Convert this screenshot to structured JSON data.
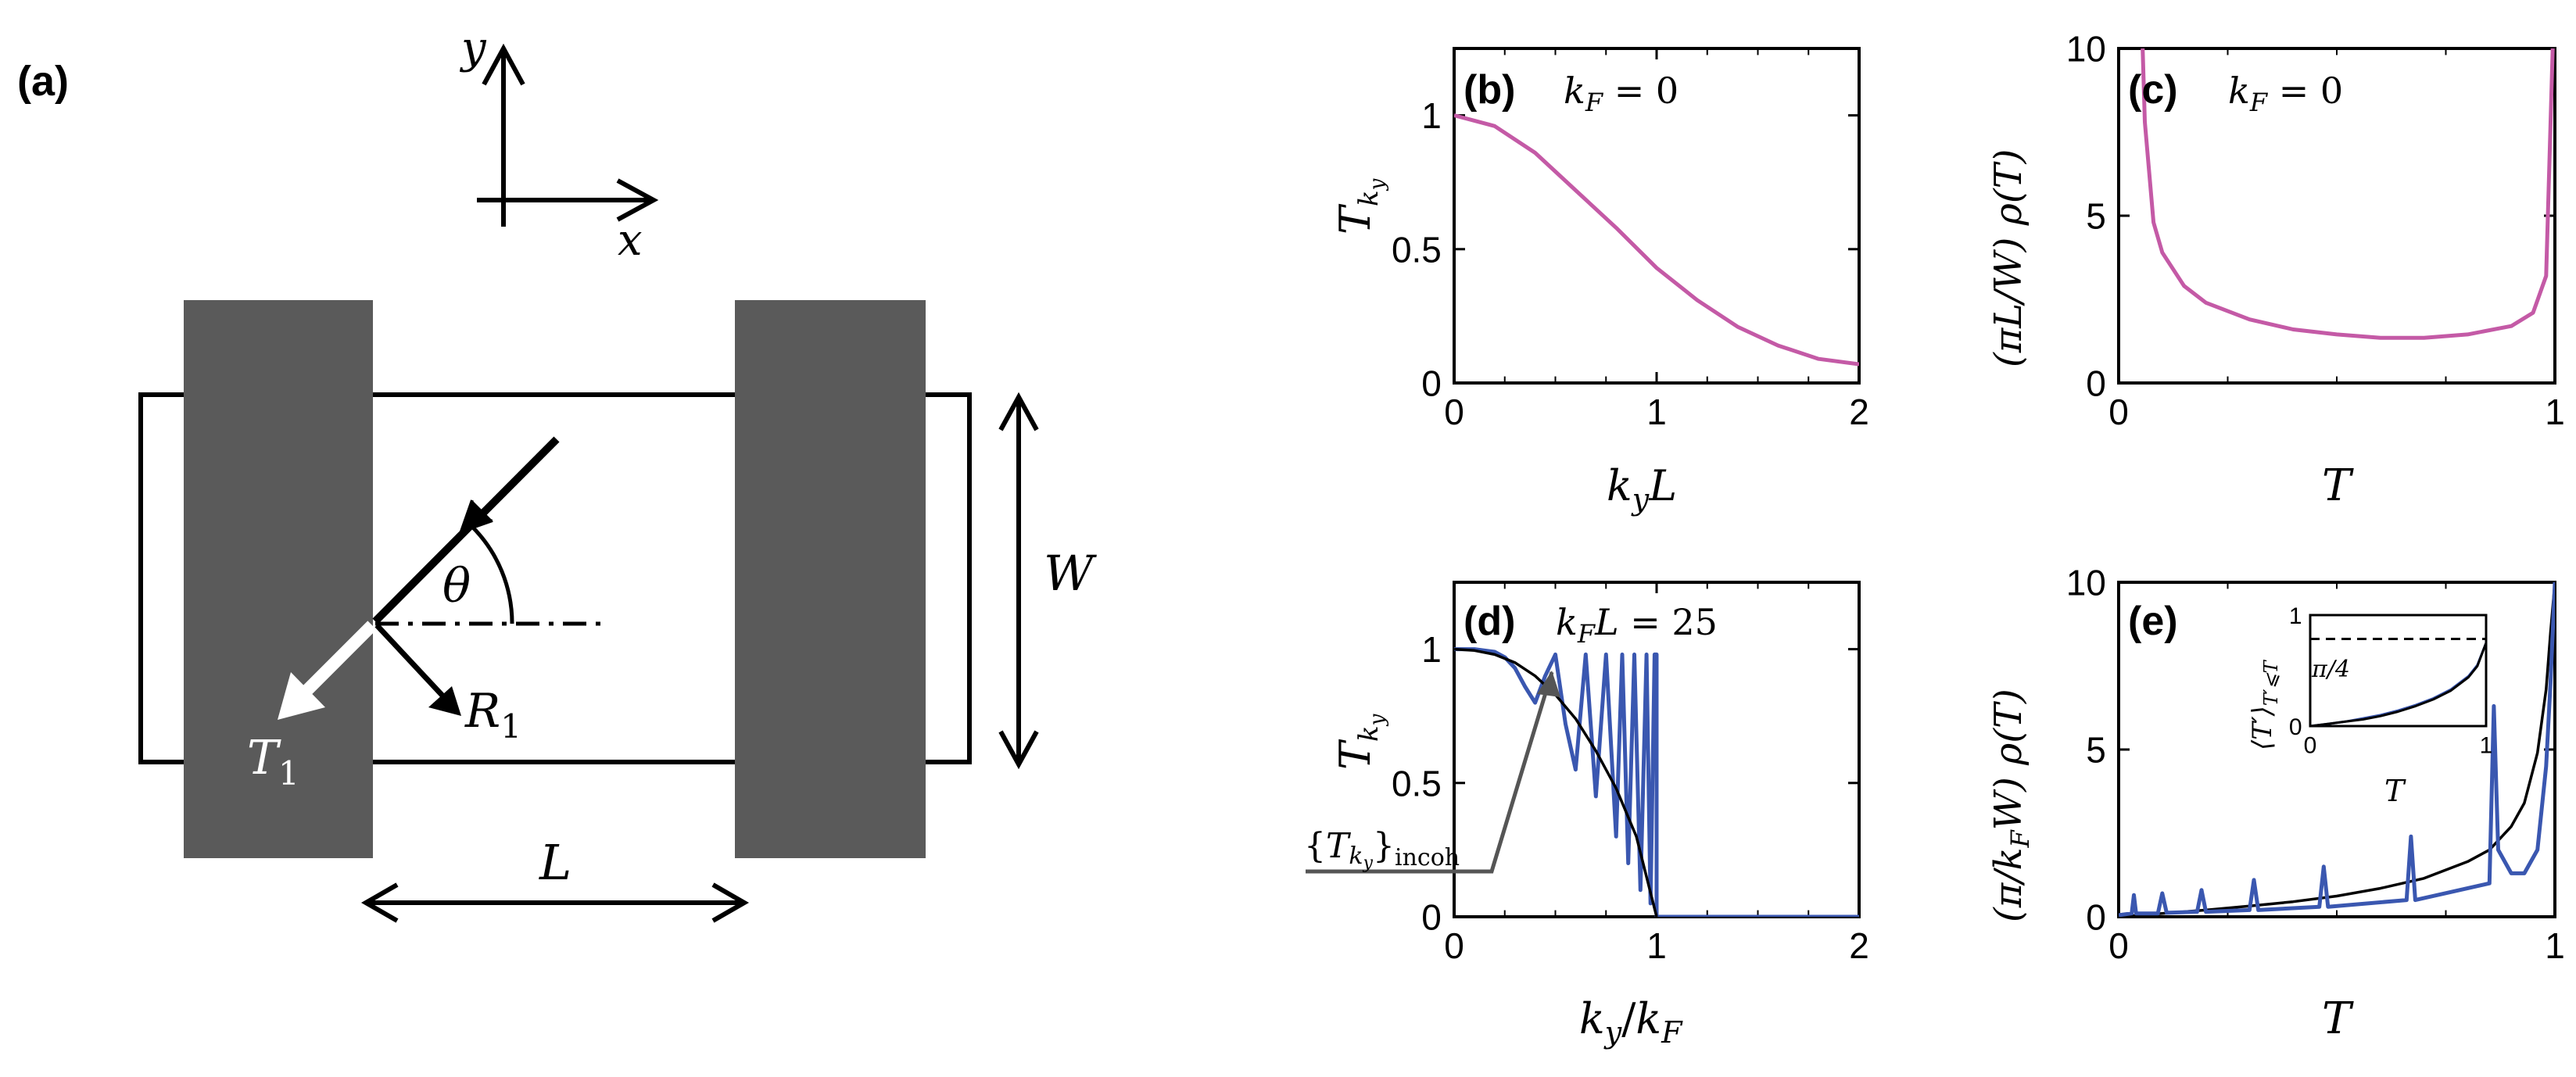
{
  "schematic": {
    "panel_label": "(a)",
    "axis_x": "x",
    "axis_y": "y",
    "angle_label": "θ",
    "width_label": "W",
    "length_label": "L",
    "transmitted_label_main": "T",
    "transmitted_label_sub": "1",
    "reflected_label_main": "R",
    "reflected_label_sub": "1",
    "colors": {
      "contact": "#5a5a5a",
      "outline": "#000000",
      "transmitted_arrow": "#ffffff"
    }
  },
  "panels": {
    "b": {
      "label": "(b)",
      "annotation": "k_F = 0",
      "xticks": [
        "0",
        "1",
        "2"
      ],
      "yticks": [
        "0",
        "0.5",
        "1"
      ],
      "xlabel": "k_y L",
      "ylabel": "T_{k_y}"
    },
    "c": {
      "label": "(c)",
      "annotation": "k_F = 0",
      "xticks": [
        "0",
        "1"
      ],
      "yticks": [
        "0",
        "5",
        "10"
      ],
      "xlabel": "T",
      "ylabel": "(πL/W) ρ(T)"
    },
    "d": {
      "label": "(d)",
      "annotation": "k_F L = 25",
      "xticks": [
        "0",
        "1",
        "2"
      ],
      "yticks": [
        "0",
        "0.5",
        "1"
      ],
      "xlabel": "k_y / k_F",
      "ylabel": "T_{k_y}",
      "callout": "{T_{k_y}}_incoh"
    },
    "e": {
      "label": "(e)",
      "xticks": [
        "0",
        "1"
      ],
      "yticks": [
        "0",
        "5",
        "10"
      ],
      "xlabel": "T",
      "ylabel": "(π/k_F W) ρ(T)",
      "inset": {
        "xticks": [
          "0",
          "1"
        ],
        "yticks": [
          "0",
          "1"
        ],
        "xlabel": "T",
        "ylabel": "⟨T′⟩_{T′⩽T}",
        "annotation": "π/4"
      }
    }
  },
  "chart_data": [
    {
      "panel": "b",
      "type": "line",
      "xlim": [
        0,
        2
      ],
      "ylim": [
        0,
        1.25
      ],
      "series": [
        {
          "color": "#c45aa6",
          "x": [
            0,
            0.2,
            0.4,
            0.6,
            0.8,
            1.0,
            1.2,
            1.4,
            1.6,
            1.8,
            2.0
          ],
          "y": [
            1.0,
            0.96,
            0.86,
            0.72,
            0.58,
            0.43,
            0.31,
            0.21,
            0.14,
            0.09,
            0.07
          ]
        }
      ]
    },
    {
      "panel": "c",
      "type": "line",
      "xlim": [
        0,
        1
      ],
      "ylim": [
        0,
        10
      ],
      "series": [
        {
          "color": "#c45aa6",
          "x": [
            0.055,
            0.06,
            0.08,
            0.1,
            0.15,
            0.2,
            0.3,
            0.4,
            0.5,
            0.6,
            0.7,
            0.8,
            0.9,
            0.95,
            0.98,
            0.995
          ],
          "y": [
            10.0,
            7.8,
            4.8,
            3.9,
            2.9,
            2.4,
            1.9,
            1.6,
            1.45,
            1.35,
            1.35,
            1.45,
            1.7,
            2.1,
            3.2,
            10.0
          ]
        }
      ]
    },
    {
      "panel": "d",
      "type": "line",
      "xlim": [
        0,
        2
      ],
      "ylim": [
        0,
        1.25
      ],
      "series": [
        {
          "color": "#3a57b0",
          "x": [
            0,
            0.1,
            0.2,
            0.25,
            0.3,
            0.35,
            0.4,
            0.45,
            0.5,
            0.55,
            0.6,
            0.65,
            0.7,
            0.75,
            0.8,
            0.83,
            0.86,
            0.89,
            0.92,
            0.95,
            0.97,
            0.99,
            1.0,
            1.0,
            2.0
          ],
          "y": [
            1.0,
            1.0,
            0.99,
            0.97,
            0.93,
            0.86,
            0.8,
            0.9,
            0.98,
            0.72,
            0.55,
            0.98,
            0.45,
            0.98,
            0.3,
            0.98,
            0.2,
            0.98,
            0.1,
            0.98,
            0.05,
            0.98,
            0.98,
            0.0,
            0.0
          ]
        },
        {
          "color": "#000000",
          "x": [
            0,
            0.1,
            0.2,
            0.3,
            0.4,
            0.5,
            0.6,
            0.7,
            0.8,
            0.9,
            1.0
          ],
          "y": [
            1.0,
            0.995,
            0.98,
            0.95,
            0.9,
            0.83,
            0.74,
            0.62,
            0.48,
            0.3,
            0.0
          ]
        }
      ]
    },
    {
      "panel": "e",
      "type": "line",
      "xlim": [
        0,
        1
      ],
      "ylim": [
        0,
        10
      ],
      "series": [
        {
          "color": "#000000",
          "x": [
            0,
            0.1,
            0.2,
            0.3,
            0.4,
            0.5,
            0.6,
            0.7,
            0.8,
            0.85,
            0.9,
            0.93,
            0.96,
            0.98,
            0.99,
            1.0
          ],
          "y": [
            0.0,
            0.1,
            0.2,
            0.32,
            0.45,
            0.62,
            0.85,
            1.15,
            1.65,
            2.0,
            2.7,
            3.4,
            4.9,
            6.8,
            8.5,
            10.0
          ]
        },
        {
          "color": "#3a57b0",
          "x": [
            0,
            0.03,
            0.035,
            0.04,
            0.09,
            0.1,
            0.11,
            0.18,
            0.19,
            0.2,
            0.3,
            0.31,
            0.32,
            0.46,
            0.47,
            0.48,
            0.66,
            0.67,
            0.68,
            0.85,
            0.86,
            0.87,
            0.9,
            0.93,
            0.96,
            0.98,
            0.99,
            1.0
          ],
          "y": [
            0.05,
            0.1,
            0.65,
            0.1,
            0.1,
            0.7,
            0.12,
            0.15,
            0.8,
            0.15,
            0.2,
            1.1,
            0.2,
            0.3,
            1.5,
            0.3,
            0.5,
            2.4,
            0.5,
            1.0,
            6.3,
            2.0,
            1.3,
            1.3,
            2.0,
            4.5,
            7.0,
            10.0
          ]
        }
      ]
    },
    {
      "panel": "e-inset",
      "type": "line",
      "xlim": [
        0,
        1
      ],
      "ylim": [
        0,
        1
      ],
      "series": [
        {
          "color": "#3a57b0",
          "x": [
            0,
            0.1,
            0.2,
            0.3,
            0.4,
            0.5,
            0.6,
            0.7,
            0.8,
            0.9,
            0.95,
            1.0
          ],
          "y": [
            0.0,
            0.02,
            0.04,
            0.07,
            0.1,
            0.14,
            0.19,
            0.25,
            0.33,
            0.45,
            0.55,
            0.75
          ]
        },
        {
          "color": "#000000",
          "x": [
            0,
            0.1,
            0.2,
            0.3,
            0.4,
            0.5,
            0.6,
            0.7,
            0.8,
            0.9,
            0.95,
            1.0
          ],
          "y": [
            0.0,
            0.02,
            0.04,
            0.06,
            0.09,
            0.13,
            0.18,
            0.24,
            0.32,
            0.44,
            0.54,
            0.75
          ]
        }
      ],
      "reference_line": {
        "y": 0.785,
        "style": "dashed"
      }
    }
  ]
}
